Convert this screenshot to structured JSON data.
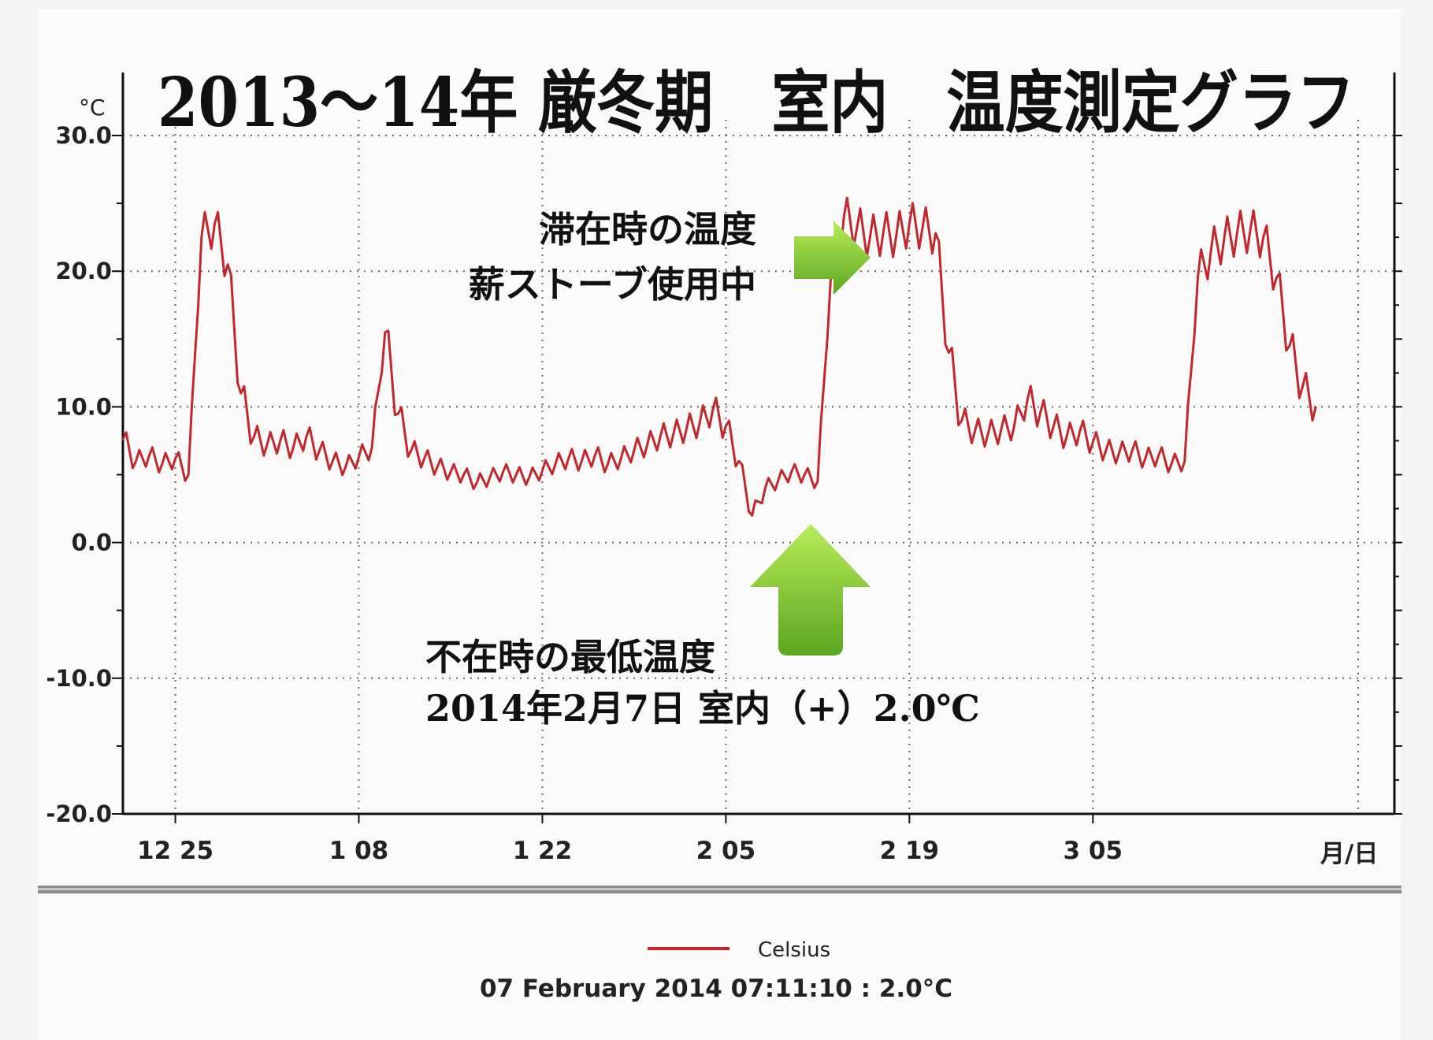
{
  "chart_data": {
    "type": "line",
    "title": "2013～14年 厳冬期　室内　温度測定グラフ",
    "ylabel": "°C",
    "xlabel": "月/日",
    "ylim": [
      -20,
      30
    ],
    "xlim": [
      "2013-12-21",
      "2014-03-28"
    ],
    "y_ticks": [
      "30.0",
      "20.0",
      "10.0",
      "0.0",
      "-10.0",
      "-20.0"
    ],
    "y_tick_values": [
      30,
      20,
      10,
      0,
      -10,
      -20
    ],
    "x_ticks": [
      {
        "label": "12 25",
        "date": "2013-12-25"
      },
      {
        "label": "1 08",
        "date": "2014-01-08"
      },
      {
        "label": "1 22",
        "date": "2014-01-22"
      },
      {
        "label": "2 05",
        "date": "2014-02-05"
      },
      {
        "label": "2 19",
        "date": "2014-02-19"
      },
      {
        "label": "3 05",
        "date": "2014-03-05"
      }
    ],
    "grid": true,
    "series": [
      {
        "name": "Celsius",
        "color": "#c0282e",
        "points": [
          [
            "2013-12-21",
            7.6
          ],
          [
            "2013-12-22",
            6.0
          ],
          [
            "2013-12-23",
            6.4
          ],
          [
            "2013-12-24",
            5.8
          ],
          [
            "2013-12-25",
            6.2
          ],
          [
            "2013-12-26",
            5.0
          ],
          [
            "2013-12-27",
            22.5
          ],
          [
            "2013-12-28",
            23.5
          ],
          [
            "2013-12-29",
            20.5
          ],
          [
            "2013-12-30",
            11.0
          ],
          [
            "2013-12-31",
            7.8
          ],
          [
            "2014-01-01",
            7.2
          ],
          [
            "2014-01-02",
            7.5
          ],
          [
            "2014-01-03",
            7.0
          ],
          [
            "2014-01-04",
            7.8
          ],
          [
            "2014-01-05",
            6.8
          ],
          [
            "2014-01-06",
            6.0
          ],
          [
            "2014-01-07",
            5.6
          ],
          [
            "2014-01-08",
            6.3
          ],
          [
            "2014-01-09",
            7.0
          ],
          [
            "2014-01-10",
            15.5
          ],
          [
            "2014-01-11",
            9.5
          ],
          [
            "2014-01-12",
            6.8
          ],
          [
            "2014-01-13",
            6.2
          ],
          [
            "2014-01-14",
            5.6
          ],
          [
            "2014-01-15",
            5.2
          ],
          [
            "2014-01-16",
            5.0
          ],
          [
            "2014-01-17",
            4.4
          ],
          [
            "2014-01-18",
            4.8
          ],
          [
            "2014-01-19",
            5.2
          ],
          [
            "2014-01-20",
            5.0
          ],
          [
            "2014-01-21",
            4.8
          ],
          [
            "2014-01-22",
            5.3
          ],
          [
            "2014-01-23",
            5.8
          ],
          [
            "2014-01-24",
            6.2
          ],
          [
            "2014-01-25",
            6.0
          ],
          [
            "2014-01-26",
            6.4
          ],
          [
            "2014-01-27",
            5.8
          ],
          [
            "2014-01-28",
            6.2
          ],
          [
            "2014-01-29",
            6.8
          ],
          [
            "2014-01-30",
            7.2
          ],
          [
            "2014-01-31",
            7.8
          ],
          [
            "2014-02-01",
            8.0
          ],
          [
            "2014-02-02",
            8.4
          ],
          [
            "2014-02-03",
            8.8
          ],
          [
            "2014-02-04",
            9.8
          ],
          [
            "2014-02-05",
            8.6
          ],
          [
            "2014-02-06",
            6.0
          ],
          [
            "2014-02-07",
            2.0
          ],
          [
            "2014-02-08",
            4.0
          ],
          [
            "2014-02-09",
            4.6
          ],
          [
            "2014-02-10",
            5.2
          ],
          [
            "2014-02-11",
            5.0
          ],
          [
            "2014-02-12",
            4.5
          ],
          [
            "2014-02-13",
            19.5
          ],
          [
            "2014-02-14",
            24.0
          ],
          [
            "2014-02-15",
            23.2
          ],
          [
            "2014-02-16",
            22.5
          ],
          [
            "2014-02-17",
            22.8
          ],
          [
            "2014-02-18",
            22.6
          ],
          [
            "2014-02-19",
            23.5
          ],
          [
            "2014-02-20",
            23.2
          ],
          [
            "2014-02-21",
            22.8
          ],
          [
            "2014-02-22",
            14.0
          ],
          [
            "2014-02-23",
            9.0
          ],
          [
            "2014-02-24",
            8.2
          ],
          [
            "2014-02-25",
            8.0
          ],
          [
            "2014-02-26",
            8.3
          ],
          [
            "2014-02-27",
            8.6
          ],
          [
            "2014-02-28",
            10.5
          ],
          [
            "2014-03-01",
            9.6
          ],
          [
            "2014-03-02",
            8.6
          ],
          [
            "2014-03-03",
            7.8
          ],
          [
            "2014-03-04",
            8.2
          ],
          [
            "2014-03-05",
            7.4
          ],
          [
            "2014-03-06",
            6.8
          ],
          [
            "2014-03-07",
            6.6
          ],
          [
            "2014-03-08",
            6.8
          ],
          [
            "2014-03-09",
            6.2
          ],
          [
            "2014-03-10",
            6.4
          ],
          [
            "2014-03-11",
            5.8
          ],
          [
            "2014-03-12",
            6.0
          ],
          [
            "2014-03-13",
            19.5
          ],
          [
            "2014-03-14",
            21.5
          ],
          [
            "2014-03-15",
            22.3
          ],
          [
            "2014-03-16",
            22.8
          ],
          [
            "2014-03-17",
            23.0
          ],
          [
            "2014-03-18",
            22.5
          ],
          [
            "2014-03-19",
            19.5
          ],
          [
            "2014-03-20",
            14.5
          ],
          [
            "2014-03-21",
            11.5
          ],
          [
            "2014-03-22",
            10.0
          ]
        ]
      }
    ],
    "legend_position": "bottom-center"
  },
  "annotations": {
    "stay_line1": "滞在時の温度",
    "stay_line2": "薪ストーブ使用中",
    "absent_line1": "不在時の最低温度",
    "absent_line2": "2014年2月7日 室内（+）2.0℃"
  },
  "arrow_color": "#7cc62c",
  "legend": {
    "label": "Celsius",
    "readout": "07 February 2014 07:11:10 : 2.0°C"
  }
}
